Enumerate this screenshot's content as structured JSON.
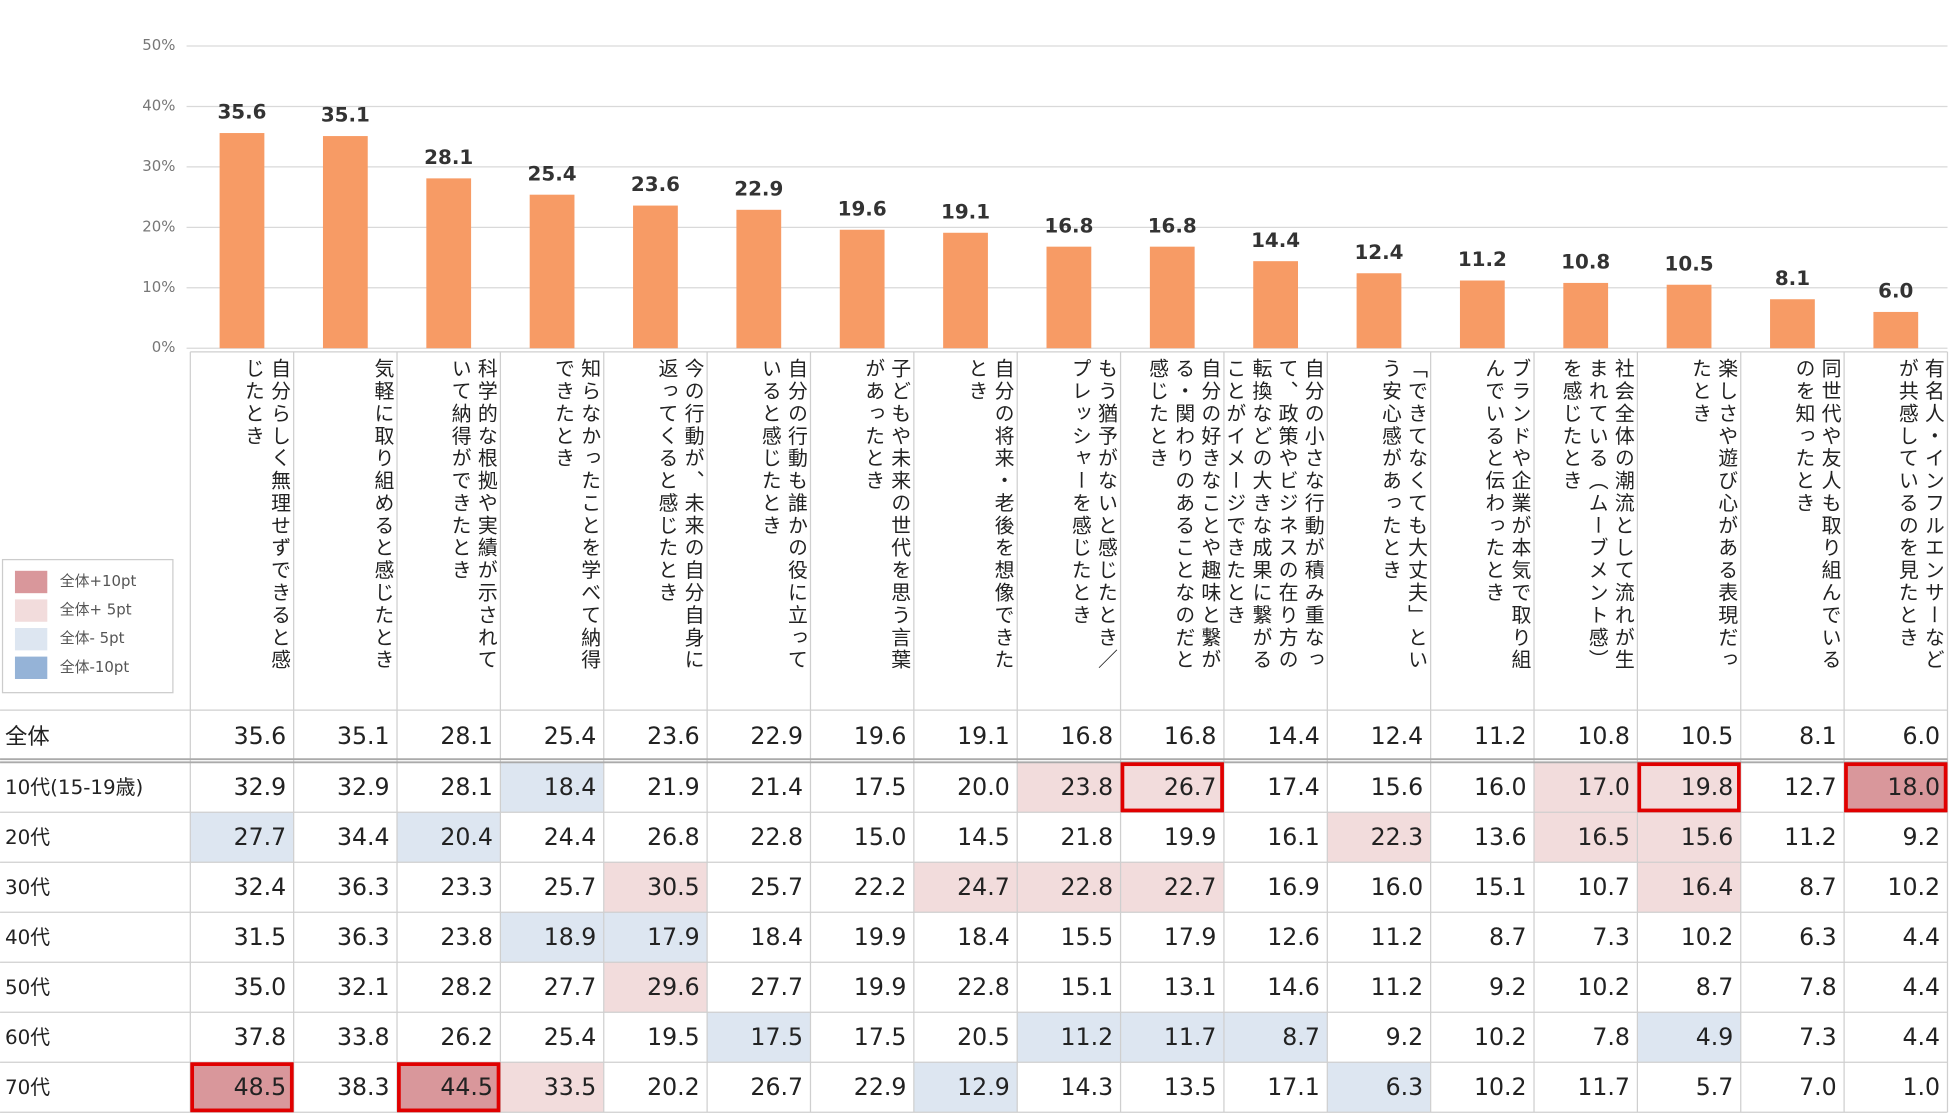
{
  "chart_data": {
    "type": "bar",
    "categories": [
      "自分らしく無理せずできると感じたとき",
      "気軽に取り組めると感じたとき",
      "科学的な根拠や実績が示されていて納得ができたとき",
      "知らなかったことを学べて納得できたとき",
      "今の行動が、未来の自分自身に返ってくると感じたとき",
      "自分の行動も誰かの役に立っていると感じたとき",
      "子どもや未来の世代を思う言葉があったとき",
      "自分の将来・老後を想像できたとき",
      "もう猶予がないと感じたとき／プレッシャーを感じたとき",
      "自分の好きなことや趣味と繋がる・関わりのあることなのだと感じたとき",
      "自分の小さな行動が積み重なって、政策やビジネスの在り方の転換などの大きな成果に繋がることがイメージできたとき",
      "「できてなくても大丈夫」という安心感があったとき",
      "ブランドや企業が本気で取り組んでいると伝わったとき",
      "社会全体の潮流として流れが生まれている（ムーブメント感）を感じたとき",
      "楽しさや遊び心がある表現だったとき",
      "同世代や友人も取り組んでいるのを知ったとき",
      "有名人・インフルエンサーなどが共感しているのを見たとき"
    ],
    "values": [
      35.6,
      35.1,
      28.1,
      25.4,
      23.6,
      22.9,
      19.6,
      19.1,
      16.8,
      16.8,
      14.4,
      12.4,
      11.2,
      10.8,
      10.5,
      8.1,
      6.0
    ],
    "value_labels": [
      "35.6",
      "35.1",
      "28.1",
      "25.4",
      "23.6",
      "22.9",
      "19.6",
      "19.1",
      "16.8",
      "16.8",
      "14.4",
      "12.4",
      "11.2",
      "10.8",
      "10.5",
      "8.1",
      "6.0"
    ],
    "color": "#f79b65",
    "ylim": [
      0,
      50
    ],
    "yticks": [
      {
        "value": 0,
        "label": "0%"
      },
      {
        "value": 10,
        "label": "10%"
      },
      {
        "value": 20,
        "label": "20%"
      },
      {
        "value": 30,
        "label": "30%"
      },
      {
        "value": 40,
        "label": "40%"
      },
      {
        "value": 50,
        "label": "50%"
      }
    ],
    "grid": true
  },
  "table": {
    "legend": [
      {
        "label": "全体+10pt",
        "color": "#d9979b"
      },
      {
        "label": "全体+ 5pt",
        "color": "#f2dcdc"
      },
      {
        "label": "全体- 5pt",
        "color": "#dde6f1"
      },
      {
        "label": "全体-10pt",
        "color": "#95b3d7"
      }
    ],
    "rows": [
      {
        "label": "全体",
        "values": [
          "35.6",
          "35.1",
          "28.1",
          "25.4",
          "23.6",
          "22.9",
          "19.6",
          "19.1",
          "16.8",
          "16.8",
          "14.4",
          "12.4",
          "11.2",
          "10.8",
          "10.5",
          "8.1",
          "6.0"
        ],
        "shade": [
          null,
          null,
          null,
          null,
          null,
          null,
          null,
          null,
          null,
          null,
          null,
          null,
          null,
          null,
          null,
          null,
          null
        ],
        "boxed": []
      },
      {
        "label": "10代(15-19歳)",
        "values": [
          "32.9",
          "32.9",
          "28.1",
          "18.4",
          "21.9",
          "21.4",
          "17.5",
          "20.0",
          "23.8",
          "26.7",
          "17.4",
          "15.6",
          "16.0",
          "17.0",
          "19.8",
          "12.7",
          "18.0"
        ],
        "shade": [
          null,
          null,
          null,
          2,
          null,
          null,
          null,
          null,
          1,
          1,
          null,
          null,
          null,
          1,
          1,
          null,
          0
        ],
        "boxed": [
          9,
          14,
          16
        ]
      },
      {
        "label": "20代",
        "values": [
          "27.7",
          "34.4",
          "20.4",
          "24.4",
          "26.8",
          "22.8",
          "15.0",
          "14.5",
          "21.8",
          "19.9",
          "16.1",
          "22.3",
          "13.6",
          "16.5",
          "15.6",
          "11.2",
          "9.2"
        ],
        "shade": [
          2,
          null,
          2,
          null,
          null,
          null,
          null,
          null,
          null,
          null,
          null,
          1,
          null,
          1,
          1,
          null,
          null
        ],
        "boxed": []
      },
      {
        "label": "30代",
        "values": [
          "32.4",
          "36.3",
          "23.3",
          "25.7",
          "30.5",
          "25.7",
          "22.2",
          "24.7",
          "22.8",
          "22.7",
          "16.9",
          "16.0",
          "15.1",
          "10.7",
          "16.4",
          "8.7",
          "10.2"
        ],
        "shade": [
          null,
          null,
          null,
          null,
          1,
          null,
          null,
          1,
          1,
          1,
          null,
          null,
          null,
          null,
          1,
          null,
          null
        ],
        "boxed": []
      },
      {
        "label": "40代",
        "values": [
          "31.5",
          "36.3",
          "23.8",
          "18.9",
          "17.9",
          "18.4",
          "19.9",
          "18.4",
          "15.5",
          "17.9",
          "12.6",
          "11.2",
          "8.7",
          "7.3",
          "10.2",
          "6.3",
          "4.4"
        ],
        "shade": [
          null,
          null,
          null,
          2,
          2,
          null,
          null,
          null,
          null,
          null,
          null,
          null,
          null,
          null,
          null,
          null,
          null
        ],
        "boxed": []
      },
      {
        "label": "50代",
        "values": [
          "35.0",
          "32.1",
          "28.2",
          "27.7",
          "29.6",
          "27.7",
          "19.9",
          "22.8",
          "15.1",
          "13.1",
          "14.6",
          "11.2",
          "9.2",
          "10.2",
          "8.7",
          "7.8",
          "4.4"
        ],
        "shade": [
          null,
          null,
          null,
          null,
          1,
          null,
          null,
          null,
          null,
          null,
          null,
          null,
          null,
          null,
          null,
          null,
          null
        ],
        "boxed": []
      },
      {
        "label": "60代",
        "values": [
          "37.8",
          "33.8",
          "26.2",
          "25.4",
          "19.5",
          "17.5",
          "17.5",
          "20.5",
          "11.2",
          "11.7",
          "8.7",
          "9.2",
          "10.2",
          "7.8",
          "4.9",
          "7.3",
          "4.4"
        ],
        "shade": [
          null,
          null,
          null,
          null,
          null,
          2,
          null,
          null,
          2,
          2,
          2,
          null,
          null,
          null,
          2,
          null,
          null
        ],
        "boxed": []
      },
      {
        "label": "70代",
        "values": [
          "48.5",
          "38.3",
          "44.5",
          "33.5",
          "20.2",
          "26.7",
          "22.9",
          "12.9",
          "14.3",
          "13.5",
          "17.1",
          "6.3",
          "10.2",
          "11.7",
          "5.7",
          "7.0",
          "1.0"
        ],
        "shade": [
          0,
          null,
          0,
          1,
          null,
          null,
          null,
          2,
          null,
          null,
          null,
          2,
          null,
          null,
          null,
          null,
          null
        ],
        "boxed": [
          0,
          2
        ]
      }
    ]
  }
}
